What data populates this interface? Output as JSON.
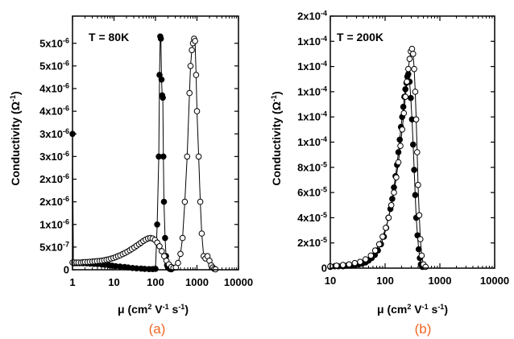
{
  "chart_data": [
    {
      "panel": "a",
      "type": "scatter",
      "annotation": "T = 80K",
      "panel_label": "(a)",
      "xlabel": "μ (cm² V⁻¹ s⁻¹)",
      "ylabel": "Conductivity (Ω⁻¹)",
      "xscale": "log",
      "xlim": [
        1,
        10000
      ],
      "ylim": [
        0,
        5.6e-06
      ],
      "x_ticks": [
        {
          "v": 1,
          "label": "1"
        },
        {
          "v": 10,
          "label": "10"
        },
        {
          "v": 100,
          "label": "100"
        },
        {
          "v": 1000,
          "label": "1000"
        },
        {
          "v": 10000,
          "label": "10000"
        }
      ],
      "y_ticks": [
        {
          "v": 0,
          "label": "0"
        },
        {
          "v": 5e-07,
          "label": "5x10-7"
        },
        {
          "v": 1e-06,
          "label": "1x10-6"
        },
        {
          "v": 1.5e-06,
          "label": "2x10-6"
        },
        {
          "v": 2e-06,
          "label": "2x10-6"
        },
        {
          "v": 2.5e-06,
          "label": "3x10-6"
        },
        {
          "v": 3e-06,
          "label": "3x10-6"
        },
        {
          "v": 3.5e-06,
          "label": "4x10-6"
        },
        {
          "v": 4e-06,
          "label": "4x10-6"
        },
        {
          "v": 4.5e-06,
          "label": "5x10-6"
        },
        {
          "v": 5e-06,
          "label": "5x10-6"
        }
      ],
      "series": [
        {
          "marker": "filled",
          "x": [
            1,
            1.05,
            1.15,
            1.3,
            1.5,
            1.8,
            2.2,
            2.7,
            3.3,
            4,
            5,
            6,
            7.5,
            9,
            11,
            14,
            18,
            22,
            28,
            35,
            45,
            55,
            70,
            85,
            100,
            110,
            120,
            125,
            130,
            135,
            140,
            145,
            150,
            155,
            160,
            170,
            180,
            190,
            200,
            220,
            240
          ],
          "y": [
            3e-06,
            1.45e-07,
            1.45e-07,
            1.45e-07,
            1.45e-07,
            1.42e-07,
            1.4e-07,
            1.35e-07,
            1.3e-07,
            1.25e-07,
            1.2e-07,
            1.1e-07,
            1e-07,
            9e-08,
            8e-08,
            7e-08,
            6e-08,
            5e-08,
            4e-08,
            3e-08,
            2.5e-08,
            2e-08,
            1.5e-08,
            1.5e-08,
            2e-08,
            1e-06,
            2.5e-06,
            4.3e-06,
            5.15e-06,
            5.1e-06,
            4.2e-06,
            3.85e-06,
            3.8e-06,
            2.5e-06,
            1.5e-06,
            7e-07,
            3e-07,
            1e-07,
            5e-08,
            2e-08,
            1e-08
          ]
        },
        {
          "marker": "open",
          "x": [
            1,
            1.1,
            1.25,
            1.4,
            1.6,
            1.8,
            2,
            2.3,
            2.6,
            3,
            3.4,
            3.9,
            4.5,
            5.1,
            5.8,
            6.6,
            7.5,
            8.5,
            9.7,
            11,
            12.5,
            14.2,
            16.2,
            18.4,
            21,
            24,
            27,
            31,
            35,
            40,
            45,
            51,
            58,
            66,
            75,
            85,
            97,
            110,
            125,
            142,
            162,
            184,
            210,
            240,
            270,
            310,
            350,
            400,
            450,
            510,
            580,
            660,
            700,
            750,
            800,
            850,
            900,
            950,
            1000,
            1100,
            1200,
            1300,
            1450,
            1600,
            1800,
            2000,
            2200,
            2400,
            2600,
            2800
          ],
          "y": [
            1.6e-07,
            1.6e-07,
            1.6e-07,
            1.6e-07,
            1.6e-07,
            1.65e-07,
            1.7e-07,
            1.7e-07,
            1.75e-07,
            1.8e-07,
            1.85e-07,
            1.9e-07,
            1.95e-07,
            2e-07,
            2.1e-07,
            2.2e-07,
            2.3e-07,
            2.45e-07,
            2.6e-07,
            2.8e-07,
            3e-07,
            3.2e-07,
            3.45e-07,
            3.7e-07,
            4e-07,
            4.3e-07,
            4.6e-07,
            4.95e-07,
            5.3e-07,
            5.65e-07,
            6e-07,
            6.35e-07,
            6.65e-07,
            6.9e-07,
            7e-07,
            6.9e-07,
            6.6e-07,
            6e-07,
            5.2e-07,
            4.1e-07,
            3e-07,
            2e-07,
            1.2e-07,
            6e-08,
            4e-08,
            5e-08,
            1.5e-07,
            3.5e-07,
            7e-07,
            1.5e-06,
            2.5e-06,
            3.9e-06,
            4.5e-06,
            4.85e-06,
            5e-06,
            5.1e-06,
            5.05e-06,
            4.3e-06,
            3.5e-06,
            2.5e-06,
            1.5e-06,
            8e-07,
            3e-07,
            2.5e-07,
            3e-07,
            2e-07,
            1e-07,
            5e-08,
            2e-08,
            1e-08
          ]
        }
      ]
    },
    {
      "panel": "b",
      "type": "scatter",
      "annotation": "T = 200K",
      "panel_label": "(b)",
      "xlabel": "μ (cm² V⁻¹ s⁻¹)",
      "ylabel": "Conductivity (Ω⁻¹)",
      "xscale": "log",
      "xlim": [
        10,
        10000
      ],
      "ylim": [
        0,
        0.0002
      ],
      "x_ticks": [
        {
          "v": 10,
          "label": "10"
        },
        {
          "v": 100,
          "label": "100"
        },
        {
          "v": 1000,
          "label": "1000"
        },
        {
          "v": 10000,
          "label": "10000"
        }
      ],
      "y_ticks": [
        {
          "v": 0,
          "label": "0"
        },
        {
          "v": 2e-05,
          "label": "2x10-5"
        },
        {
          "v": 4e-05,
          "label": "4x10-5"
        },
        {
          "v": 6e-05,
          "label": "6x10-5"
        },
        {
          "v": 8e-05,
          "label": "8x10-5"
        },
        {
          "v": 0.0001,
          "label": "1x10-4"
        },
        {
          "v": 0.00012,
          "label": "1x10-4"
        },
        {
          "v": 0.00014,
          "label": "1x10-4"
        },
        {
          "v": 0.00016,
          "label": "1x10-4"
        },
        {
          "v": 0.00018,
          "label": "1x10-4"
        },
        {
          "v": 0.0002,
          "label": "2x10-4"
        }
      ],
      "series": [
        {
          "marker": "filled",
          "x": [
            10,
            12,
            14,
            17,
            20,
            24,
            28,
            33,
            38,
            44,
            50,
            57,
            65,
            74,
            84,
            95,
            105,
            115,
            125,
            135,
            145,
            155,
            165,
            175,
            185,
            195,
            205,
            215,
            225,
            235,
            245,
            255,
            265,
            280,
            295,
            310,
            325,
            340,
            355,
            370,
            390,
            410,
            430,
            450,
            480
          ],
          "y": [
            1e-06,
            1.5e-06,
            1.5e-06,
            1.5e-06,
            2e-06,
            2e-06,
            2.5e-06,
            3e-06,
            3.5e-06,
            4.5e-06,
            6e-06,
            8e-06,
            1.05e-05,
            1.4e-05,
            1.9e-05,
            2.5e-05,
            3.2e-05,
            4e-05,
            4.7e-05,
            5.5e-05,
            6.4e-05,
            7.3e-05,
            8.2e-05,
            9.2e-05,
            0.000102,
            0.000112,
            0.00012,
            0.000128,
            0.000136,
            0.000142,
            0.000147,
            0.000152,
            0.000154,
            0.000148,
            0.000135,
            0.000118,
            9.8e-05,
            7.8e-05,
            5.8e-05,
            4e-05,
            2.6e-05,
            1.5e-05,
            8e-06,
            3e-06,
            1e-06
          ]
        },
        {
          "marker": "open",
          "x": [
            10,
            13,
            17,
            22,
            28,
            35,
            44,
            55,
            66,
            78,
            90,
            103,
            116,
            130,
            145,
            160,
            175,
            190,
            205,
            220,
            235,
            250,
            265,
            280,
            295,
            310,
            325,
            340,
            355,
            370,
            385,
            400,
            420,
            440,
            465,
            500,
            550
          ],
          "y": [
            1.5e-06,
            2e-06,
            2.5e-06,
            3e-06,
            4e-06,
            5e-06,
            7e-06,
            1e-05,
            1.4e-05,
            1.9e-05,
            2.5e-05,
            3.2e-05,
            4e-05,
            5e-05,
            6e-05,
            7.2e-05,
            8.4e-05,
            9.7e-05,
            0.00011,
            0.000123,
            0.000136,
            0.000148,
            0.000158,
            0.000166,
            0.000172,
            0.000174,
            0.00017,
            0.000158,
            0.00014,
            0.000118,
            9.2e-05,
            6.6e-05,
            4.2e-05,
            2.3e-05,
            1e-05,
            3e-06,
            1e-06
          ]
        }
      ]
    }
  ]
}
